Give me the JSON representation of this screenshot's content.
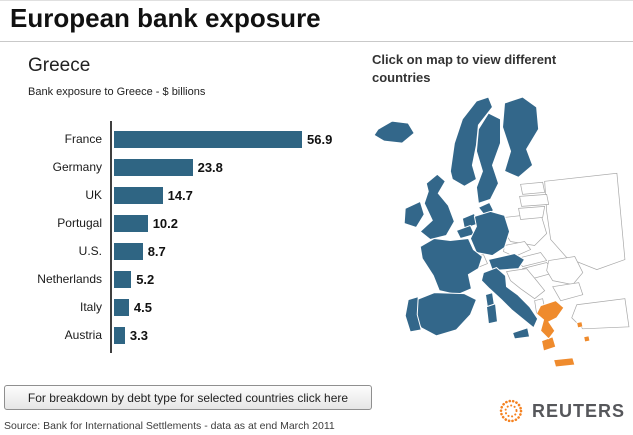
{
  "header": {
    "title": "European bank exposure"
  },
  "chart_data": {
    "type": "bar",
    "orientation": "horizontal",
    "title": "Greece",
    "subtitle": "Bank exposure to Greece - $ billions",
    "categories": [
      "France",
      "Germany",
      "UK",
      "Portugal",
      "U.S.",
      "Netherlands",
      "Italy",
      "Austria"
    ],
    "values": [
      56.9,
      23.8,
      14.7,
      10.2,
      8.7,
      5.2,
      4.5,
      3.3
    ],
    "xlim": [
      0,
      60
    ],
    "bar_color": "#2f6583",
    "grid": false,
    "legend": false
  },
  "map": {
    "instruction": "Click on map to view different countries",
    "selected_country": "Greece",
    "colors": {
      "member": "#33678a",
      "highlight": "#ef8b2d",
      "other": "#ffffff"
    }
  },
  "footer": {
    "button_label": "For breakdown by debt type for selected countries click here",
    "source": "Source: Bank for International Settlements - data as at end March 2011",
    "logo_text": "REUTERS",
    "logo_icon": "reuters-dotted-circle-icon"
  }
}
